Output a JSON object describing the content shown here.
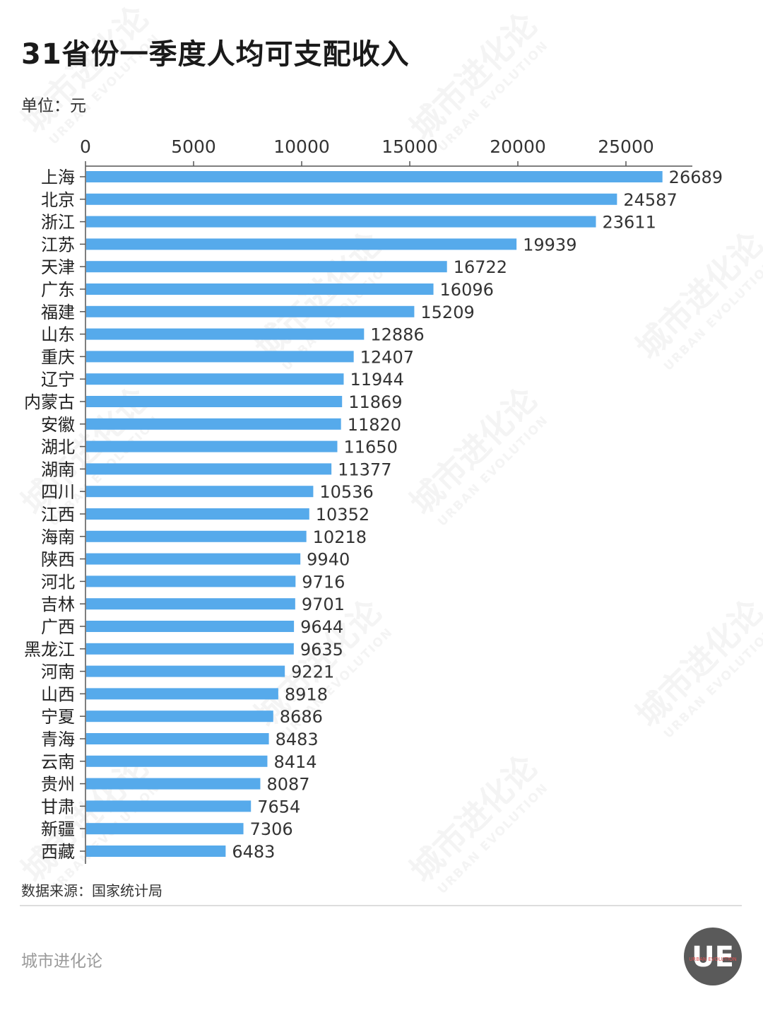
{
  "title": "31省份一季度人均可支配收入",
  "unit": "单位：元",
  "source": "数据来源：国家统计局",
  "brand": "城市进化论",
  "logo": {
    "letters": "UE",
    "ring_text": "URBAN EVOLUTION"
  },
  "watermark": {
    "cn": "城市进化论",
    "en": "URBAN EVOLUTION"
  },
  "colors": {
    "bar": "#56aaeb",
    "axis": "#555555"
  },
  "chart_data": {
    "type": "bar",
    "orientation": "horizontal",
    "title": "31省份一季度人均可支配收入",
    "xlabel": "",
    "ylabel": "",
    "xlim": [
      0,
      28000
    ],
    "xticks": [
      0,
      5000,
      10000,
      15000,
      20000,
      25000
    ],
    "axis_position": "top",
    "categories": [
      "上海",
      "北京",
      "浙江",
      "江苏",
      "天津",
      "广东",
      "福建",
      "山东",
      "重庆",
      "辽宁",
      "内蒙古",
      "安徽",
      "湖北",
      "湖南",
      "四川",
      "江西",
      "海南",
      "陕西",
      "河北",
      "吉林",
      "广西",
      "黑龙江",
      "河南",
      "山西",
      "宁夏",
      "青海",
      "云南",
      "贵州",
      "甘肃",
      "新疆",
      "西藏"
    ],
    "values": [
      26689,
      24587,
      23611,
      19939,
      16722,
      16096,
      15209,
      12886,
      12407,
      11944,
      11869,
      11820,
      11650,
      11377,
      10536,
      10352,
      10218,
      9940,
      9716,
      9701,
      9644,
      9635,
      9221,
      8918,
      8686,
      8483,
      8414,
      8087,
      7654,
      7306,
      6483
    ]
  }
}
